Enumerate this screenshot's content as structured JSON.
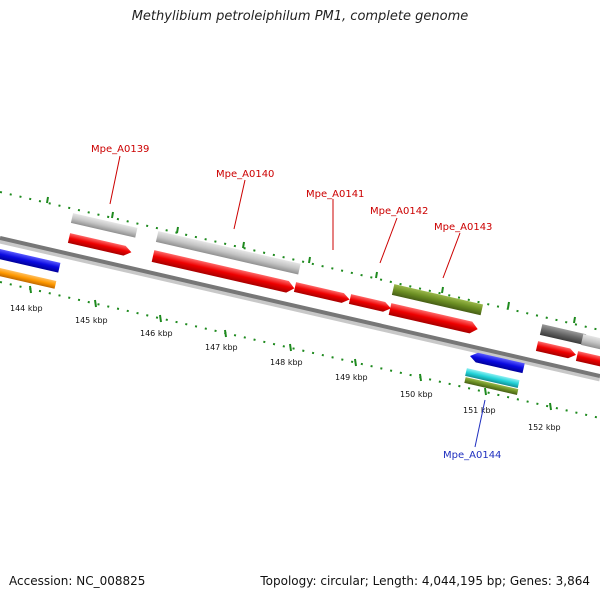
{
  "title": "Methylibium petroleiphilum PM1, complete genome",
  "footer": {
    "accession": "Accession: NC_008825",
    "summary": "Topology: circular; Length: 4,044,195 bp; Genes: 3,864"
  },
  "kbp_ticks": [
    "144 kbp",
    "145 kbp",
    "146 kbp",
    "147 kbp",
    "148 kbp",
    "149 kbp",
    "150 kbp",
    "151 kbp",
    "152 kbp"
  ],
  "gene_labels": [
    {
      "text": "Mpe_A0139",
      "color": "#cc0000"
    },
    {
      "text": "Mpe_A0140",
      "color": "#cc0000"
    },
    {
      "text": "Mpe_A0141",
      "color": "#cc0000"
    },
    {
      "text": "Mpe_A0142",
      "color": "#cc0000"
    },
    {
      "text": "Mpe_A0143",
      "color": "#cc0000"
    },
    {
      "text": "Mpe_A0144",
      "color": "#1f2fbf"
    }
  ],
  "colors": {
    "backbone": "#777777",
    "cds_forward": "#ee0000",
    "gene_gray": "#c8c8c8",
    "gene_olive": "#6b8e23",
    "reverse_blue": "#0a0ae0",
    "orange": "#ff9900",
    "cyan": "#22d3d8",
    "dark_gray": "#666666",
    "tick_green": "#1e8a1e"
  }
}
